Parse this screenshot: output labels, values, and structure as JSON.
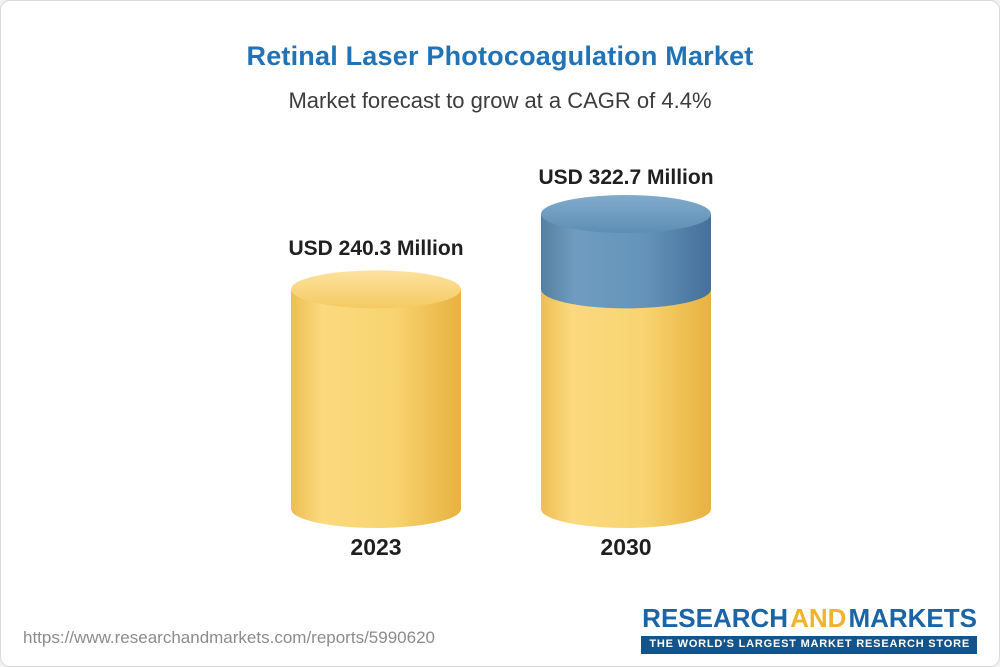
{
  "header": {
    "title": "Retinal Laser Photocoagulation Market",
    "subtitle": "Market forecast to grow at a CAGR of 4.4%"
  },
  "chart_data": {
    "type": "bar",
    "style": "3d-cylinder",
    "title": "Retinal Laser Photocoagulation Market",
    "subtitle": "Market forecast to grow at a CAGR of 4.4%",
    "cagr_percent": 4.4,
    "unit": "USD Million",
    "categories": [
      "2023",
      "2030"
    ],
    "values": [
      240.3,
      322.7
    ],
    "bars": [
      {
        "category": "2023",
        "label": "USD 240.3 Million",
        "total": 240.3,
        "segments": [
          {
            "value": 240.3,
            "palette": "gold"
          }
        ]
      },
      {
        "category": "2030",
        "label": "USD 322.7 Million",
        "total": 322.7,
        "segments": [
          {
            "value": 240.3,
            "palette": "gold"
          },
          {
            "value": 82.4,
            "palette": "blue"
          }
        ]
      }
    ],
    "colors": {
      "gold": "#f8d16c",
      "blue": "#5d8db5",
      "title_accent": "#2173b6"
    },
    "legend_position": "none",
    "grid": false
  },
  "footer": {
    "url": "https://www.researchandmarkets.com/reports/5990620",
    "logo": {
      "word1": "RESEARCH",
      "word2": "AND",
      "word3": "MARKETS",
      "tagline": "THE WORLD'S LARGEST MARKET RESEARCH STORE"
    }
  }
}
